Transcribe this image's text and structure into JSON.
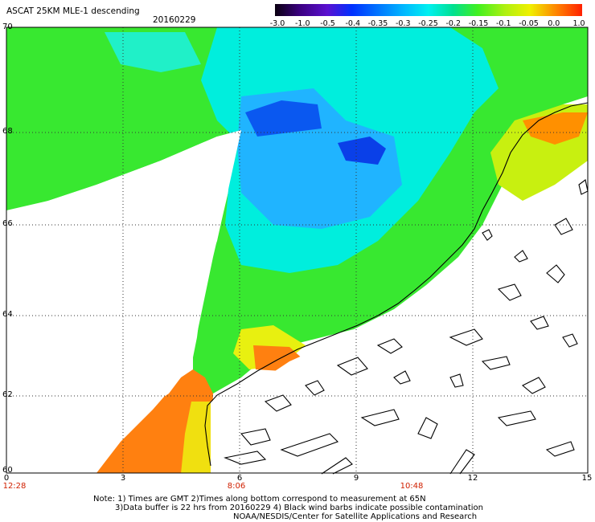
{
  "header": {
    "title": "ASCAT 25KM MLE-1 descending",
    "date": "20160229"
  },
  "colorbar": {
    "labels": [
      "-3.0",
      "-1.0",
      "-0.5",
      "-0.4",
      "-0.35",
      "-0.3",
      "-0.25",
      "-0.2",
      "-0.15",
      "-0.1",
      "-0.05",
      "0.0",
      "1.0"
    ],
    "colors": [
      "#0a0010",
      "#3a0080",
      "#5a10d0",
      "#0030ff",
      "#0070ff",
      "#00b8ff",
      "#00f0f0",
      "#00e090",
      "#40f020",
      "#b0f010",
      "#f0f000",
      "#ff8000",
      "#ff2000"
    ]
  },
  "axes": {
    "lat_labels": [
      "70",
      "68",
      "66",
      "64",
      "62",
      "60"
    ],
    "lon_labels": [
      "0",
      "3",
      "6",
      "9",
      "12",
      "15"
    ],
    "time_labels": [
      "12:28",
      "8:06",
      "10:48"
    ]
  },
  "notes": {
    "line1": "Note: 1) Times are GMT 2)Times along bottom correspond to measurement at 65N",
    "line2": "3)Data buffer is 22 hrs from 20160229 4) Black wind barbs indicate possible contamination",
    "line3": "NOAA/NESDIS/Center for Satellite Applications and Research"
  },
  "colors": {
    "accent_time": "#d02000",
    "land": "#ffffff",
    "coast": "#000000"
  }
}
